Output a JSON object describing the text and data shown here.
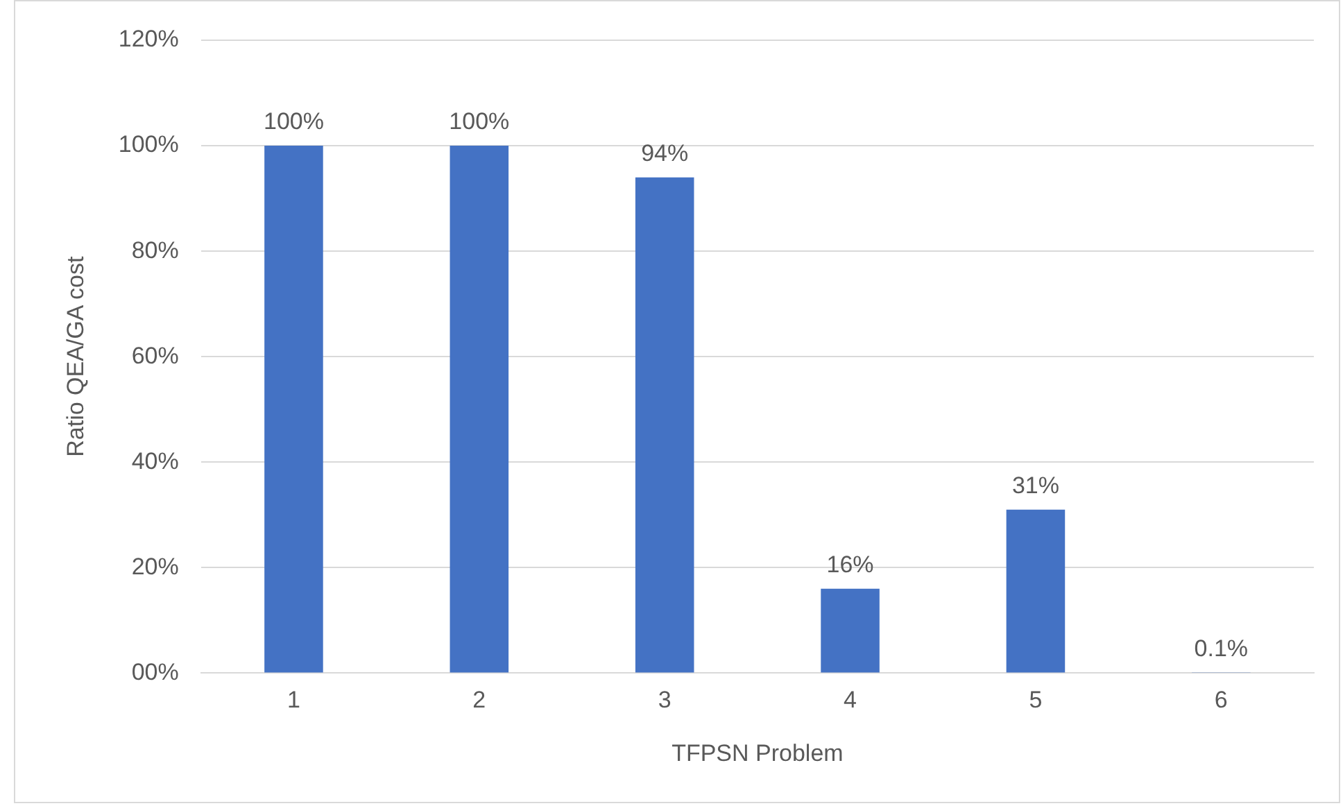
{
  "chart_data": {
    "type": "bar",
    "xlabel": "TFPSN Problem",
    "ylabel": "Ratio QEA/GA cost",
    "categories": [
      "1",
      "2",
      "3",
      "4",
      "5",
      "6"
    ],
    "values": [
      100,
      100,
      94,
      16,
      31,
      0.1
    ],
    "value_labels": [
      "100%",
      "100%",
      "94%",
      "16%",
      "31%",
      "0.1%"
    ],
    "color": "#4472c4",
    "ylim": [
      0,
      120
    ],
    "yticks": [
      {
        "value": 0,
        "label": "00%"
      },
      {
        "value": 20,
        "label": "20%"
      },
      {
        "value": 40,
        "label": "40%"
      },
      {
        "value": 60,
        "label": "60%"
      },
      {
        "value": 80,
        "label": "80%"
      },
      {
        "value": 100,
        "label": "100%"
      },
      {
        "value": 120,
        "label": "120%"
      }
    ],
    "grid": "y"
  }
}
